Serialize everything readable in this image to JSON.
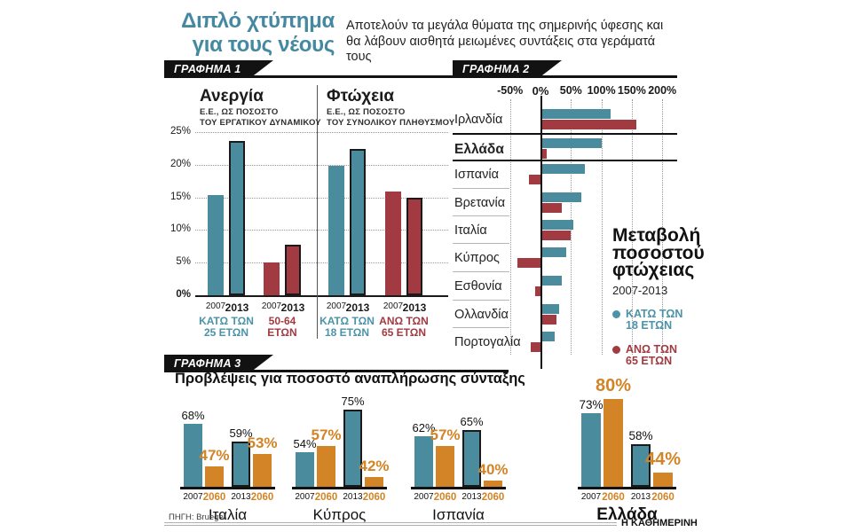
{
  "header": {
    "title_line1": "Διπλό χτύπημα",
    "title_line2": "για τους νέους",
    "subtitle_line1": "Αποτελούν τα μεγάλα θύματα της σημερινής ύφεσης και",
    "subtitle_line2": "θα λάβουν αισθητά μειωμένες συντάξεις στα γεράματά τους"
  },
  "colors": {
    "teal": "#4A8C9E",
    "red": "#A23A41",
    "orange": "#D28426",
    "teal_text": "#4A93A8",
    "black": "#1A1A1A"
  },
  "footer": {
    "source": "ΠΗΓΗ: Bruegel",
    "brand": "Η ΚΑΘΗΜΕΡΙΝΗ"
  },
  "chart_data": [
    {
      "id": "grafima1",
      "type": "bar",
      "badge": "ΓΡΑΦΗΜΑ 1",
      "ylim": [
        0,
        25
      ],
      "y_ticks": [
        0,
        5,
        10,
        15,
        20,
        25
      ],
      "grid": true,
      "panels": [
        {
          "title": "Ανεργία",
          "subtitle": [
            "Ε.Ε., ΩΣ ΠΟΣΟΣΤΟ",
            "ΤΟΥ ΕΡΓΑΤΙΚΟΥ ΔΥΝΑΜΙΚΟΥ"
          ],
          "groups": [
            {
              "label": [
                "ΚΑΤΩ ΤΩΝ",
                "25 ΕΤΩΝ"
              ],
              "color": "teal",
              "bars": [
                {
                  "year": "2007",
                  "value": 15.4
                },
                {
                  "year": "2013",
                  "value": 23.6,
                  "outlined": true
                }
              ]
            },
            {
              "label": [
                "50-64",
                "ΕΤΩΝ"
              ],
              "color": "red",
              "bars": [
                {
                  "year": "2007",
                  "value": 5.0
                },
                {
                  "year": "2013",
                  "value": 7.8,
                  "outlined": true
                }
              ]
            }
          ]
        },
        {
          "title": "Φτώχεια",
          "subtitle": [
            "Ε.Ε., ΩΣ ΠΟΣΟΣΤΟ",
            "ΤΟΥ ΣΥΝΟΛΙΚΟΥ ΠΛΗΘΥΣΜΟΥ"
          ],
          "groups": [
            {
              "label": [
                "ΚΑΤΩ ΤΩΝ",
                "18 ΕΤΩΝ"
              ],
              "color": "teal",
              "bars": [
                {
                  "year": "2007",
                  "value": 19.8
                },
                {
                  "year": "2013",
                  "value": 22.4,
                  "outlined": true
                }
              ]
            },
            {
              "label": [
                "ΑΝΩ ΤΩΝ",
                "65 ΕΤΩΝ"
              ],
              "color": "red",
              "bars": [
                {
                  "year": "2007",
                  "value": 15.9
                },
                {
                  "year": "2013",
                  "value": 14.9,
                  "outlined": true
                }
              ]
            }
          ]
        }
      ]
    },
    {
      "id": "grafima2",
      "type": "bar-horizontal",
      "badge": "ΓΡΑΦΗΜΑ 2",
      "xlim": [
        -50,
        200
      ],
      "x_ticks": [
        -50,
        0,
        50,
        100,
        150,
        200
      ],
      "grid": true,
      "rows": [
        {
          "country": "Ιρλανδία",
          "under18": 114,
          "over65": 156
        },
        {
          "country": "Ελλάδα",
          "under18": 99,
          "over65": 9,
          "bold": true,
          "highlight": true
        },
        {
          "country": "Ισπανία",
          "under18": 72,
          "over65": -19
        },
        {
          "country": "Βρετανία",
          "under18": 66,
          "over65": 34
        },
        {
          "country": "Ιταλία",
          "under18": 52,
          "over65": 48
        },
        {
          "country": "Κύπρος",
          "under18": 41,
          "over65": -38
        },
        {
          "country": "Εσθονία",
          "under18": 34,
          "over65": -9
        },
        {
          "country": "Ολλανδία",
          "under18": 29,
          "over65": 25
        },
        {
          "country": "Πορτογαλία",
          "under18": 22,
          "over65": -16
        }
      ],
      "legend": {
        "title": [
          "Μεταβολή",
          "ποσοστού",
          "φτώχειας"
        ],
        "period": "2007-2013",
        "items": [
          {
            "label": [
              "ΚΑΤΩ ΤΩΝ",
              "18 ΕΤΩΝ"
            ],
            "color": "teal"
          },
          {
            "label": [
              "ΑΝΩ ΤΩΝ",
              "65 ΕΤΩΝ"
            ],
            "color": "red"
          }
        ]
      }
    },
    {
      "id": "grafima3",
      "type": "bar",
      "badge": "ΓΡΑΦΗΜΑ 3",
      "title": "Προβλέψεις για ποσοστό αναπλήρωσης σύνταξης",
      "groups": [
        {
          "country": "Ιταλία",
          "bars": [
            {
              "year": "2007",
              "value": 68,
              "color": "teal"
            },
            {
              "year": "2060",
              "value": 47,
              "color": "orange"
            },
            {
              "year": "2013",
              "value": 59,
              "color": "teal",
              "outlined": true
            },
            {
              "year": "2060",
              "value": 53,
              "color": "orange"
            }
          ]
        },
        {
          "country": "Κύπρος",
          "bars": [
            {
              "year": "2007",
              "value": 54,
              "color": "teal"
            },
            {
              "year": "2060",
              "value": 57,
              "color": "orange"
            },
            {
              "year": "2013",
              "value": 75,
              "color": "teal",
              "outlined": true
            },
            {
              "year": "2060",
              "value": 42,
              "color": "orange"
            }
          ]
        },
        {
          "country": "Ισπανία",
          "bars": [
            {
              "year": "2007",
              "value": 62,
              "color": "teal"
            },
            {
              "year": "2060",
              "value": 57,
              "color": "orange"
            },
            {
              "year": "2013",
              "value": 65,
              "color": "teal",
              "outlined": true
            },
            {
              "year": "2060",
              "value": 40,
              "color": "orange"
            }
          ]
        },
        {
          "country": "Ελλάδα",
          "emphasis": true,
          "bars": [
            {
              "year": "2007",
              "value": 73,
              "color": "teal"
            },
            {
              "year": "2060",
              "value": 80,
              "color": "orange"
            },
            {
              "year": "2013",
              "value": 58,
              "color": "teal",
              "outlined": true
            },
            {
              "year": "2060",
              "value": 44,
              "color": "orange"
            }
          ]
        }
      ]
    }
  ]
}
